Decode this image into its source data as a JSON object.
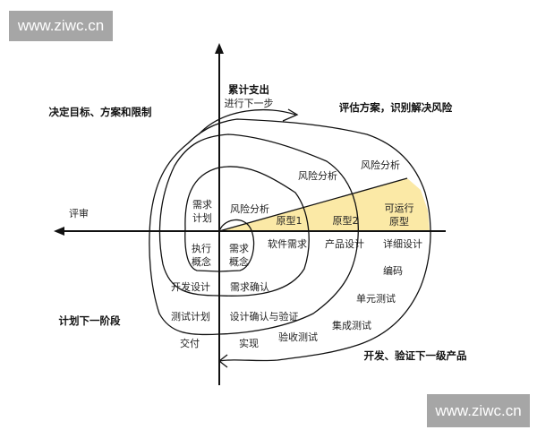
{
  "watermark": {
    "text": "www.ziwc.cn"
  },
  "colors": {
    "prototype_fill": "#fbe9a6",
    "line": "#111111",
    "watermark_bg": "#a6a6a6"
  },
  "axis": {
    "top_line1": "累计支出",
    "top_line2": "进行下一步"
  },
  "quadrants": {
    "top_left": "决定目标、方案和限制",
    "top_right": "评估方案，识别解决风险",
    "bottom_left": "计划下一阶段",
    "bottom_right": "开发、验证下一级产品",
    "review": "评审"
  },
  "labels": {
    "risk1": "风险分析",
    "risk2": "风险分析",
    "risk3": "风险分析",
    "req_plan_1": "需求",
    "req_plan_2": "计划",
    "proto1": "原型1",
    "proto2": "原型2",
    "runnable_1": "可运行",
    "runnable_2": "原型",
    "exec_concept_1": "执行",
    "exec_concept_2": "概念",
    "req_concept_1": "需求",
    "req_concept_2": "概念",
    "software_req": "软件需求",
    "product_design": "产品设计",
    "detail_design": "详细设计",
    "coding": "编码",
    "unit_test": "单元测试",
    "integration_test": "集成测试",
    "acceptance_test": "验收测试",
    "implementation": "实现",
    "delivery": "交付",
    "dev_design": "开发设计",
    "req_confirm": "需求确认",
    "test_plan": "测试计划",
    "design_verify": "设计确认与验证"
  }
}
